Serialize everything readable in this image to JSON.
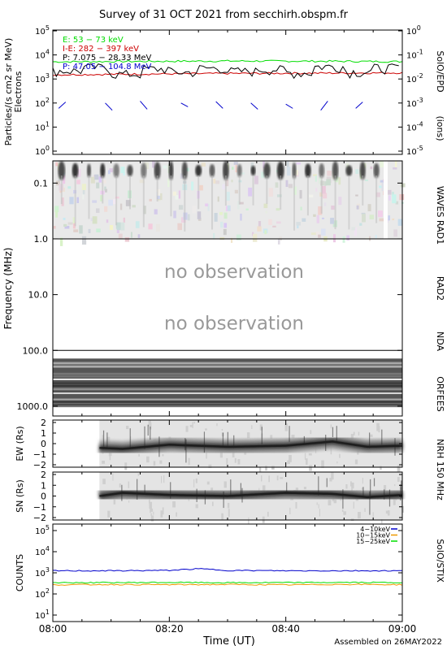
{
  "title": "Survey of 31 OCT 2021 from secchirh.obspm.fr",
  "footer": "Assembled on 26MAY2022",
  "x_axis": {
    "label": "Time (UT)",
    "ticks": [
      "08:00",
      "08:20",
      "08:40",
      "09:00"
    ],
    "range_minutes": [
      0,
      60
    ]
  },
  "colors": {
    "green": "#00dd00",
    "red": "#cc0000",
    "black": "#000000",
    "blue": "#0000cc",
    "orange": "#ee9900"
  },
  "chart_data": [
    {
      "type": "line",
      "panel": "epd",
      "ylabel": "Particles/(s cm2 sr MeV)",
      "ylabel2": "Electrons",
      "right_label": "SolO/EPD",
      "right_axis_label": "(ions)",
      "ylim": [
        1,
        100000
      ],
      "y_log": true,
      "y_ticks": [
        "10^0",
        "10^1",
        "10^2",
        "10^3",
        "10^4",
        "10^5"
      ],
      "y2lim": [
        1e-05,
        1
      ],
      "y2_ticks": [
        "10^-5",
        "10^-4",
        "10^-3",
        "10^-2",
        "10^-1",
        "10^0"
      ],
      "legend_position": "top-left",
      "series": [
        {
          "name": "E: 53 − 73 keV",
          "color": "#00dd00",
          "x": [
            0,
            15,
            30,
            45,
            60
          ],
          "values": [
            5200,
            5400,
            5600,
            5500,
            5300
          ]
        },
        {
          "name": "I-E: 282 − 397 keV",
          "color": "#cc0000",
          "x": [
            0,
            15,
            30,
            45,
            60
          ],
          "values": [
            1500,
            1600,
            1700,
            1750,
            1800
          ]
        },
        {
          "name": "P: 7.075 − 28.33 MeV",
          "color": "#000000",
          "x": [
            0,
            5,
            10,
            15,
            20,
            25,
            30,
            35,
            40,
            45,
            50,
            55,
            60
          ],
          "values": [
            2200,
            3000,
            1600,
            2600,
            1900,
            2800,
            2100,
            2500,
            1800,
            3300,
            2000,
            2900,
            2200
          ]
        },
        {
          "name": "P: 47.05 − 104.8 MeV",
          "color": "#0000cc",
          "x": [
            1,
            3,
            9,
            12,
            15,
            18,
            22,
            25,
            28,
            31,
            34,
            37,
            40,
            43,
            46,
            49,
            52,
            56,
            59
          ],
          "values": [
            60,
            110,
            100,
            50,
            120,
            55,
            100,
            70,
            115,
            60,
            100,
            55,
            90,
            60,
            50,
            120,
            60,
            110,
            90
          ]
        }
      ]
    },
    {
      "type": "heatmap",
      "panel": "radio",
      "ylabel": "Frequency (MHz)",
      "y_log": true,
      "y_ticks": [
        "0.1",
        "1.0",
        "10.0",
        "100.0",
        "1000.0"
      ],
      "ylim": [
        0.04,
        1500
      ],
      "sections": [
        {
          "name": "WAVES RAD1",
          "range_mhz": [
            0.04,
            1.0
          ],
          "observed": true
        },
        {
          "name": "RAD2",
          "range_mhz": [
            1.0,
            13.8
          ],
          "observed": false,
          "note": "no observation"
        },
        {
          "name": "NDA",
          "range_mhz": [
            13.8,
            70
          ],
          "observed": false,
          "note": "no observation"
        },
        {
          "name": "ORFEES",
          "range_mhz": [
            140,
            1000
          ],
          "observed": true
        }
      ]
    },
    {
      "type": "heatmap",
      "panel": "nrh_ew",
      "ylabel": "EW (Rs)",
      "ylim": [
        -2,
        2
      ],
      "y_ticks": [
        "2",
        "1",
        "0",
        "−1",
        "−2"
      ],
      "right_label": "NRH 150 MHz",
      "data_start_minute": 8,
      "center_x": [
        8,
        12,
        20,
        30,
        40,
        48,
        54,
        60
      ],
      "center_y": [
        -0.4,
        -0.5,
        -0.1,
        -0.3,
        -0.2,
        0.2,
        -0.3,
        -0.2
      ]
    },
    {
      "type": "heatmap",
      "panel": "nrh_sn",
      "ylabel": "SN (Rs)",
      "ylim": [
        -2,
        2
      ],
      "y_ticks": [
        "2",
        "1",
        "0",
        "−1",
        "−2"
      ],
      "data_start_minute": 8,
      "center_x": [
        8,
        12,
        20,
        30,
        40,
        48,
        54,
        60
      ],
      "center_y": [
        0.0,
        0.3,
        0.1,
        0.0,
        0.3,
        0.2,
        -0.1,
        0.1
      ]
    },
    {
      "type": "line",
      "panel": "stix",
      "ylabel": "COUNTS",
      "right_label": "SolO/STIX",
      "ylim": [
        10,
        100000
      ],
      "y_log": true,
      "y_ticks": [
        "10^1",
        "10^2",
        "10^3",
        "10^4",
        "10^5"
      ],
      "legend_position": "top-right",
      "series": [
        {
          "name": "4−10keV",
          "color": "#0000cc",
          "x": [
            0,
            10,
            20,
            25,
            30,
            40,
            50,
            60
          ],
          "values": [
            1250,
            1250,
            1300,
            1550,
            1300,
            1250,
            1250,
            1250
          ]
        },
        {
          "name": "10−15keV",
          "color": "#ee9900",
          "x": [
            0,
            10,
            20,
            30,
            40,
            50,
            60
          ],
          "values": [
            270,
            280,
            275,
            280,
            270,
            285,
            275
          ]
        },
        {
          "name": "15−25keV",
          "color": "#00dd00",
          "x": [
            0,
            10,
            20,
            30,
            40,
            50,
            60
          ],
          "values": [
            340,
            345,
            350,
            340,
            345,
            350,
            345
          ]
        }
      ]
    }
  ]
}
